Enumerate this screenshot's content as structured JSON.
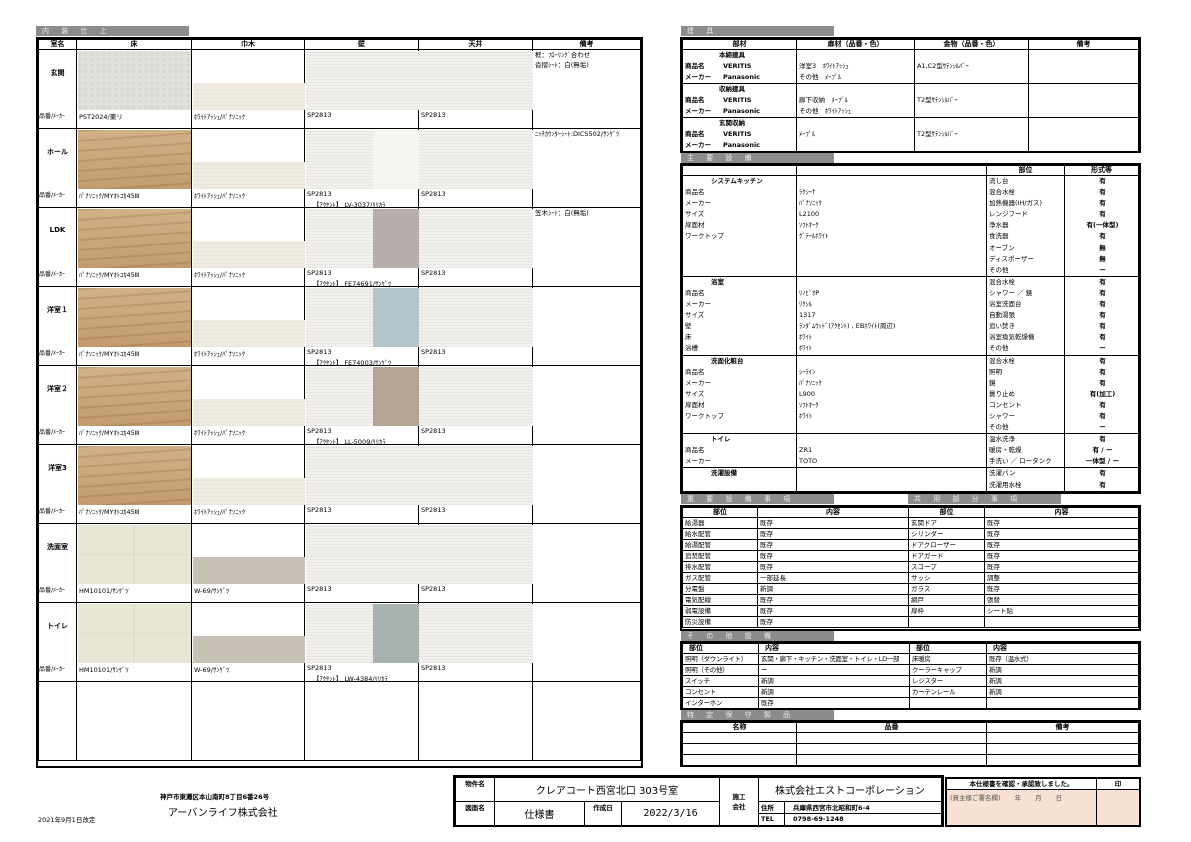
{
  "interior": {
    "title": "内 装 仕 上",
    "headers": [
      "室名",
      "床",
      "巾木",
      "壁",
      "天井",
      "備考"
    ],
    "row_label": "品番/ﾒｰｶｰ",
    "rooms": [
      {
        "name": "玄関",
        "floor": "PST2024/東リ",
        "floor_tex": "stone",
        "base": "ﾎﾜｲﾄｱｯｼｭ/ﾊﾟﾅｿﾆｯｸ",
        "base_tex": "ash",
        "wall": "SP2813",
        "accent": "",
        "accent_color": "",
        "ceiling": "SP2813",
        "notes": [
          "框：ﾌﾛｰﾘﾝｸﾞ合わせ",
          "沓摺ｼｰﾄ：白(無垢)"
        ]
      },
      {
        "name": "ホール",
        "floor": "ﾊﾟﾅｿﾆｯｸ/MYｵﾄﾕｶ45Ⅲ",
        "floor_tex": "wood",
        "base": "ﾎﾜｲﾄｱｯｼｭ/ﾊﾟﾅｿﾆｯｸ",
        "base_tex": "ash",
        "wall": "SP2813",
        "accent": "【ｱｸｾﾝﾄ】 LV-3037/ﾘﾘｶﾗ",
        "accent_color": "#f6f4f0",
        "ceiling": "SP2813",
        "notes": [
          "ﾆｯﾁｶｳﾝﾀｰｼｰﾄ:DICS502/ｻﾝｹﾞﾂ"
        ]
      },
      {
        "name": "LDK",
        "floor": "ﾊﾟﾅｿﾆｯｸ/MYｵﾄﾕｶ45Ⅲ",
        "floor_tex": "wood",
        "base": "ﾎﾜｲﾄｱｯｼｭ/ﾊﾟﾅｿﾆｯｸ",
        "base_tex": "ash",
        "wall": "SP2813",
        "accent": "【ｱｸｾﾝﾄ】 FE74691/ｻﾝｹﾞﾂ",
        "accent_color": "#b7aeab",
        "ceiling": "SP2813",
        "notes": [
          "笠木ｼｰﾄ：白(無垢)"
        ]
      },
      {
        "name": "洋室１",
        "floor": "ﾊﾟﾅｿﾆｯｸ/MYｵﾄﾕｶ45Ⅲ",
        "floor_tex": "wood",
        "base": "ﾎﾜｲﾄｱｯｼｭ/ﾊﾟﾅｿﾆｯｸ",
        "base_tex": "ash",
        "wall": "SP2813",
        "accent": "【ｱｸｾﾝﾄ】 FE74003/ｻﾝｹﾞﾂ",
        "accent_color": "#b3c4ca",
        "ceiling": "SP2813",
        "notes": []
      },
      {
        "name": "洋室２",
        "floor": "ﾊﾟﾅｿﾆｯｸ/MYｵﾄﾕｶ45Ⅲ",
        "floor_tex": "wood",
        "base": "ﾎﾜｲﾄｱｯｼｭ/ﾊﾟﾅｿﾆｯｸ",
        "base_tex": "ash",
        "wall": "SP2813",
        "accent": "【ｱｸｾﾝﾄ】 LL-5009/ﾘﾘｶﾗ",
        "accent_color": "#b5a593",
        "ceiling": "SP2813",
        "notes": []
      },
      {
        "name": "洋室3",
        "floor": "ﾊﾟﾅｿﾆｯｸ/MYｵﾄﾕｶ45Ⅲ",
        "floor_tex": "wood",
        "base": "ﾎﾜｲﾄｱｯｼｭ/ﾊﾟﾅｿﾆｯｸ",
        "base_tex": "ash",
        "wall": "SP2813",
        "accent": "",
        "accent_color": "",
        "ceiling": "SP2813",
        "notes": []
      },
      {
        "name": "洗面室",
        "floor": "HM10101/ｻﾝｹﾞﾂ",
        "floor_tex": "tile",
        "base": "W-69/ｻﾝｹﾞﾂ",
        "base_tex": "greige",
        "wall": "SP2813",
        "accent": "",
        "accent_color": "",
        "ceiling": "SP2813",
        "notes": []
      },
      {
        "name": "トイレ",
        "floor": "HM10101/ｻﾝｹﾞﾂ",
        "floor_tex": "tile",
        "base": "W-69/ｻﾝｹﾞﾂ",
        "base_tex": "greige",
        "wall": "SP2813",
        "accent": "【ｱｸｾﾝﾄ】 LW-4384/ﾘﾘｶﾗ",
        "accent_color": "#a8b2b1",
        "ceiling": "SP2813",
        "notes": []
      }
    ]
  },
  "fittings": {
    "title": "建 具",
    "headers": [
      "部材",
      "扉材（品番・色）",
      "金物（品番・色）",
      "備考"
    ],
    "rows": [
      {
        "name": "本締建具",
        "product_label": "商品名",
        "product": "VERITIS",
        "maker_label": "メーカー",
        "maker": "Panasonic",
        "door": [
          "洋室3　ﾎﾜｲﾄｱｯｼｭ",
          "その他　ﾒｰﾌﾟﾙ"
        ],
        "hardware": "A1,C2型ｻﾃﾝｼﾙﾊﾞｰ"
      },
      {
        "name": "収納建具",
        "product_label": "商品名",
        "product": "VERITIS",
        "maker_label": "メーカー",
        "maker": "Panasonic",
        "door": [
          "廊下収納　ﾒｰﾌﾟﾙ",
          "その他　ﾎﾜｲﾄｱｯｼｭ"
        ],
        "hardware": "T2型ｻﾃﾝｼﾙﾊﾞｰ"
      },
      {
        "name": "玄関収納",
        "product_label": "商品名",
        "product": "VERITIS",
        "maker_label": "メーカー",
        "maker": "Panasonic",
        "door": [
          "ﾒｰﾌﾟﾙ"
        ],
        "hardware": "T2型ｻﾃﾝｼﾙﾊﾞｰ"
      }
    ]
  },
  "equipment": {
    "title": "主 要 設 備",
    "headers": [
      "",
      "",
      "部位",
      "形式等"
    ],
    "groups": [
      {
        "name": "システムキッチン",
        "specs": [
          [
            "商品名",
            "ﾗｸｼｰﾅ"
          ],
          [
            "メーカー",
            "ﾊﾟﾅｿﾆｯｸ"
          ],
          [
            "サイズ",
            "L2100"
          ],
          [
            "扉面材",
            "ｿﾌﾄｵｰｸ"
          ],
          [
            "ワークトップ",
            "ｸﾞﾃｰﾙﾎﾜｲﾄ"
          ]
        ],
        "parts": [
          [
            "流し台",
            "有"
          ],
          [
            "混合水栓",
            "有"
          ],
          [
            "加熱機器(IH/ガス)",
            "有"
          ],
          [
            "レンジフード",
            "有"
          ],
          [
            "浄水器",
            "有(一体型)"
          ],
          [
            "食洗器",
            "有"
          ],
          [
            "オーブン",
            "無"
          ],
          [
            "ディスポーザー",
            "無"
          ],
          [
            "その他",
            "ー"
          ]
        ]
      },
      {
        "name": "浴室",
        "specs": [
          [
            "商品名",
            "ﾘﾉﾋﾞｵP"
          ],
          [
            "メーカー",
            "ﾘｸｼﾙ"
          ],
          [
            "サイズ",
            "1317"
          ],
          [
            "壁",
            "ﾗﾝﾀﾞﾑｳｯﾄﾞ(ｱｸｾﾝﾄ) , EBﾎﾜｲﾄ(周辺)"
          ],
          [
            "床",
            "ﾎﾜｲﾄ"
          ],
          [
            "浴槽",
            "ﾎﾜｲﾄ"
          ]
        ],
        "parts": [
          [
            "混合水栓",
            "有"
          ],
          [
            "シャワー ／ 鏡",
            "有"
          ],
          [
            "浴室洗面台",
            "有"
          ],
          [
            "自動湯張",
            "有"
          ],
          [
            "追い焚き",
            "有"
          ],
          [
            "浴室換気乾燥機",
            "有"
          ],
          [
            "その他",
            "ー"
          ]
        ]
      },
      {
        "name": "洗面化粧台",
        "specs": [
          [
            "商品名",
            "ｼｰﾗｲﾝ"
          ],
          [
            "メーカー",
            "ﾊﾟﾅｿﾆｯｸ"
          ],
          [
            "サイズ",
            "L900"
          ],
          [
            "扉面材",
            "ｿﾌﾄｵｰｸ"
          ],
          [
            "ワークトップ",
            "ﾎﾜｲﾄ"
          ]
        ],
        "parts": [
          [
            "混合水栓",
            "有"
          ],
          [
            "照明",
            "有"
          ],
          [
            "鏡",
            "有"
          ],
          [
            "曇り止め",
            "有(加工)"
          ],
          [
            "コンセント",
            "有"
          ],
          [
            "シャワー",
            "有"
          ],
          [
            "その他",
            "ー"
          ]
        ]
      },
      {
        "name": "トイレ",
        "specs": [
          [
            "商品名",
            "ZR1"
          ],
          [
            "メーカー",
            "TOTO"
          ]
        ],
        "parts": [
          [
            "温水洗浄",
            "有"
          ],
          [
            "暖房・乾燥",
            "有 / ー"
          ],
          [
            "手洗い ／ ロータンク",
            "一体型 / ー"
          ]
        ]
      },
      {
        "name": "洗濯設備",
        "specs": [],
        "parts": [
          [
            "洗濯パン",
            "有"
          ],
          [
            "洗濯用水栓",
            "有"
          ]
        ]
      }
    ]
  },
  "important": {
    "title": "重 要 設 備 事 項",
    "headers": [
      "部位",
      "内容"
    ],
    "rows": [
      [
        "給湯器",
        "既存"
      ],
      [
        "給水配管",
        "既存"
      ],
      [
        "給湯配管",
        "既存"
      ],
      [
        "追焚配管",
        "既存"
      ],
      [
        "排水配管",
        "既存"
      ],
      [
        "ガス配管",
        "一部延長"
      ],
      [
        "分電盤",
        "新調"
      ],
      [
        "電気配線",
        "既存"
      ],
      [
        "弱電設備",
        "既存"
      ],
      [
        "防災設備",
        "既存"
      ]
    ]
  },
  "common": {
    "title": "共 用 部 分 事 項",
    "headers": [
      "部位",
      "内容"
    ],
    "rows": [
      [
        "玄関ドア",
        "既存"
      ],
      [
        "シリンダー",
        "既存"
      ],
      [
        "ドアクローザー",
        "既存"
      ],
      [
        "ドアガード",
        "既存"
      ],
      [
        "スコープ",
        "既存"
      ],
      [
        "サッシ",
        "調整"
      ],
      [
        "ガラス",
        "既存"
      ],
      [
        "網戸",
        "張替"
      ],
      [
        "扉枠",
        "シート貼"
      ],
      [
        "",
        ""
      ]
    ]
  },
  "other": {
    "title": "そ の 他 設 備",
    "headers": [
      "部位",
      "内容",
      "部位",
      "内容"
    ],
    "rows": [
      [
        "照明（ダウンライト）",
        "玄関・廊下・キッチン・洗面室・トイレ・LD一部",
        "床暖房",
        "既存（温水式）"
      ],
      [
        "照明（その他）",
        "ー",
        "クーラーキャップ",
        "新調"
      ],
      [
        "スイッチ",
        "新調",
        "レジスター",
        "新調"
      ],
      [
        "コンセント",
        "新調",
        "カーテンレール",
        "新調"
      ],
      [
        "インターホン",
        "既存",
        "",
        ""
      ]
    ]
  },
  "maintenance": {
    "title": "特 定 保 守 製 品",
    "headers": [
      "名称",
      "品番",
      "備考"
    ],
    "rows": [
      [
        "",
        "",
        ""
      ],
      [
        "",
        "",
        ""
      ],
      [
        "",
        "",
        ""
      ]
    ]
  },
  "footer": {
    "revised": "2021年9月1日改定",
    "address": "神戸市東灘区本山南町8丁目6番26号",
    "company": "アーバンライフ株式会社",
    "property_label": "物件名",
    "property": "クレアコート西宮北口 303号室",
    "drawing_label": "図面名",
    "drawing": "仕様書",
    "created_label": "作成日",
    "created": "2022/3/16",
    "contractor_label": "施工会社",
    "contractor": "株式会社エストコーポレーション",
    "addr_label": "住所",
    "contractor_addr": "兵庫県西宮市北昭和町6-4",
    "tel_label": "TEL",
    "tel": "0798-69-1248",
    "confirm": "本仕様書を確認・承認致しました。",
    "seal": "印",
    "sign_label": "(買主様ご署名欄)",
    "year": "年",
    "month": "月",
    "day": "日",
    "sign_bg": "#f8e1d3"
  }
}
